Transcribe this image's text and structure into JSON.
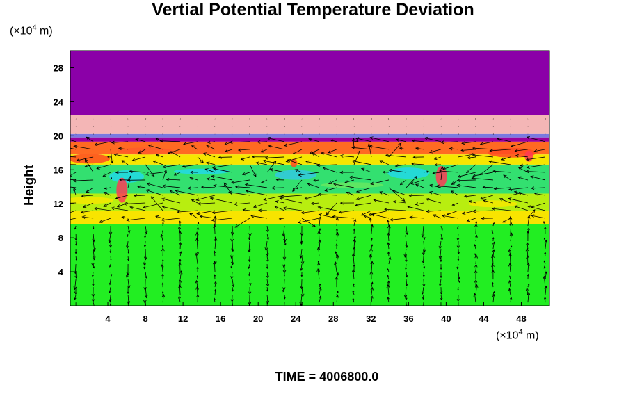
{
  "chart_data": {
    "type": "heatmap",
    "title": "Vertial Potential Temperature Deviation",
    "ylabel": "Height",
    "xunit": "(×10",
    "xunit_exp": "4",
    "xunit_tail": " m)",
    "yunit": "(×10",
    "yunit_exp": "4",
    "yunit_tail": " m)",
    "xlim": [
      0,
      51
    ],
    "ylim": [
      0,
      30
    ],
    "xticks": [
      4,
      8,
      12,
      16,
      20,
      24,
      28,
      32,
      36,
      40,
      44,
      48
    ],
    "yticks": [
      4,
      8,
      12,
      16,
      20,
      24,
      28
    ],
    "grid": false,
    "overlay": "wind vectors (arrows)",
    "layers": [
      {
        "y0": 22.4,
        "y1": 30,
        "color": "#8b00a8"
      },
      {
        "y0": 20.2,
        "y1": 22.4,
        "color": "#f4b6b6"
      },
      {
        "y0": 19.8,
        "y1": 20.2,
        "color": "#7a7ae0"
      },
      {
        "y0": 19.3,
        "y1": 19.8,
        "color": "#9b009b"
      },
      {
        "y0": 17.8,
        "y1": 19.3,
        "color": "#ff6a22"
      },
      {
        "y0": 16.6,
        "y1": 17.8,
        "color": "#f6e600"
      },
      {
        "y0": 13.2,
        "y1": 16.6,
        "color": "#33e070"
      },
      {
        "y0": 11.2,
        "y1": 13.2,
        "color": "#b8ee10"
      },
      {
        "y0": 9.6,
        "y1": 11.2,
        "color": "#f8e400"
      },
      {
        "y0": 0,
        "y1": 9.6,
        "color": "#22ee22"
      }
    ]
  },
  "footer": {
    "time_text": "TIME = 4006800.0"
  }
}
